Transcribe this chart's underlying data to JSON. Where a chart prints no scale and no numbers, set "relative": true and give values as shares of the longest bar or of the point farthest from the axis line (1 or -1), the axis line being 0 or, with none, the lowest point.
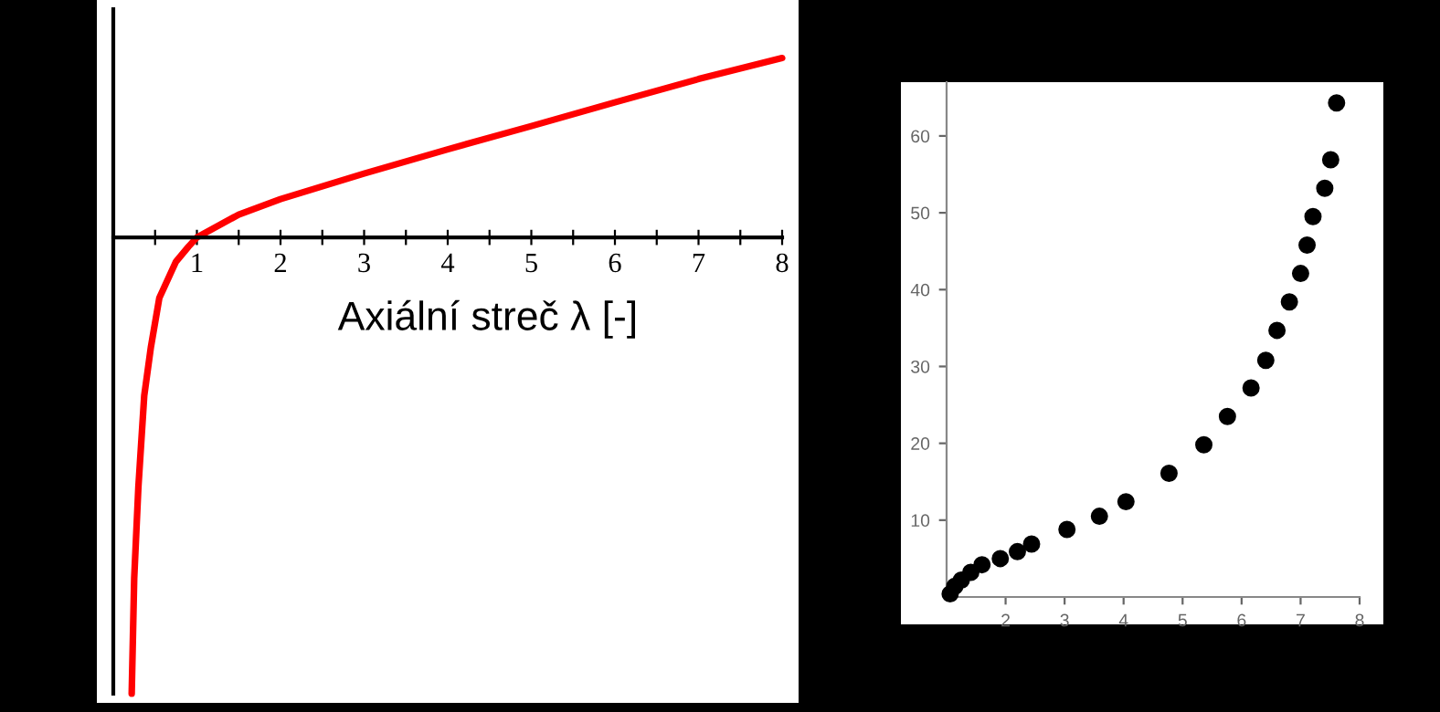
{
  "chart_data": [
    {
      "type": "line",
      "relative": true,
      "color": "#ff0000",
      "xlabel": "Axiální streč λ [-]",
      "tick_labels": "x",
      "xlim": [
        0,
        8
      ],
      "xticks": [
        {
          "value": 0.5,
          "label": null
        },
        1,
        {
          "value": 1.5,
          "label": null
        },
        2,
        {
          "value": 2.5,
          "label": null
        },
        3,
        {
          "value": 3.5,
          "label": null
        },
        4,
        {
          "value": 4.5,
          "label": null
        },
        5,
        {
          "value": 5.5,
          "label": null
        },
        6,
        {
          "value": 6.5,
          "label": null
        },
        7,
        {
          "value": 7.5,
          "label": null
        },
        8
      ],
      "x": [
        0.22,
        0.25,
        0.3,
        0.37,
        0.45,
        0.55,
        0.65,
        0.75,
        0.9,
        1,
        1.5,
        2,
        3,
        4,
        5,
        6,
        7,
        8
      ],
      "values": [
        -1,
        -0.747,
        -0.547,
        -0.347,
        -0.24,
        -0.133,
        -0.093,
        -0.053,
        -0.02,
        0,
        0.05,
        0.084,
        0.14,
        0.193,
        0.244,
        0.296,
        0.347,
        0.393
      ]
    },
    {
      "type": "scatter",
      "color": "#000000",
      "marker": "circle",
      "xlim": [
        1,
        8
      ],
      "ylim": [
        0,
        67
      ],
      "xticks": [
        2,
        3,
        4,
        5,
        6,
        7,
        8
      ],
      "yticks": [
        10,
        20,
        30,
        40,
        50,
        60
      ],
      "x": [
        1.06,
        1.14,
        1.25,
        1.41,
        1.6,
        1.91,
        2.2,
        2.44,
        3.04,
        3.59,
        4.04,
        4.77,
        5.36,
        5.76,
        6.16,
        6.41,
        6.6,
        6.81,
        7.0,
        7.11,
        7.21,
        7.41,
        7.51,
        7.61
      ],
      "values": [
        0.4,
        1.4,
        2.2,
        3.2,
        4.2,
        5.0,
        5.9,
        6.9,
        8.8,
        10.5,
        12.4,
        16.1,
        19.8,
        23.5,
        27.2,
        30.8,
        34.7,
        38.4,
        42.1,
        45.8,
        49.5,
        53.2,
        56.9,
        64.3
      ]
    }
  ]
}
